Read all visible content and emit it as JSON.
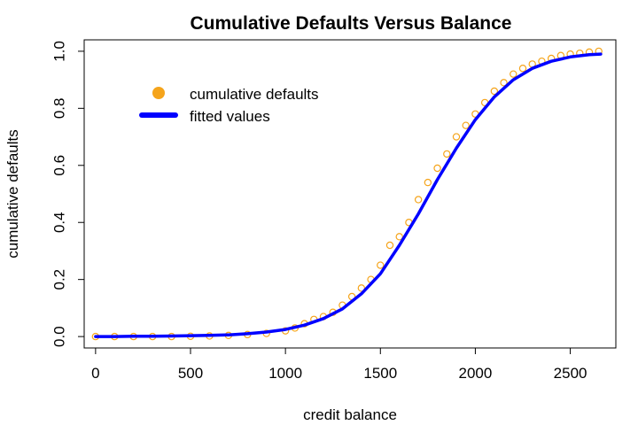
{
  "chart_data": {
    "type": "scatter",
    "title": "Cumulative Defaults Versus Balance",
    "xlabel": "credit balance",
    "ylabel": "cumulative defaults",
    "xlim": [
      -60,
      2740
    ],
    "ylim": [
      -0.04,
      1.04
    ],
    "x_ticks": [
      0,
      500,
      1000,
      1500,
      2000,
      2500
    ],
    "y_ticks": [
      0.0,
      0.2,
      0.4,
      0.6,
      0.8,
      1.0
    ],
    "x_tick_labels": [
      "0",
      "500",
      "1000",
      "1500",
      "2000",
      "2500"
    ],
    "y_tick_labels": [
      "0.0",
      "0.2",
      "0.4",
      "0.6",
      "0.8",
      "1.0"
    ],
    "grid": false,
    "legend_position": "top-left",
    "colors": {
      "points": "#f5a41b",
      "fit": "#0000ff"
    },
    "series": [
      {
        "name": "cumulative defaults",
        "kind": "points",
        "x": [
          0,
          100,
          200,
          300,
          400,
          500,
          600,
          700,
          800,
          900,
          1000,
          1050,
          1100,
          1150,
          1200,
          1250,
          1300,
          1350,
          1400,
          1450,
          1500,
          1550,
          1600,
          1650,
          1700,
          1750,
          1800,
          1850,
          1900,
          1950,
          2000,
          2050,
          2100,
          2150,
          2200,
          2250,
          2300,
          2350,
          2400,
          2450,
          2500,
          2550,
          2600,
          2650
        ],
        "y": [
          0.0,
          0.0,
          0.0,
          0.0,
          0.0,
          0.001,
          0.002,
          0.004,
          0.007,
          0.011,
          0.02,
          0.03,
          0.045,
          0.06,
          0.07,
          0.085,
          0.11,
          0.14,
          0.17,
          0.2,
          0.25,
          0.32,
          0.35,
          0.4,
          0.48,
          0.54,
          0.59,
          0.64,
          0.7,
          0.74,
          0.78,
          0.82,
          0.86,
          0.89,
          0.92,
          0.94,
          0.955,
          0.965,
          0.975,
          0.985,
          0.99,
          0.993,
          0.997,
          1.0
        ]
      },
      {
        "name": "fitted values",
        "kind": "line",
        "x": [
          0,
          100,
          200,
          300,
          400,
          500,
          600,
          700,
          800,
          900,
          1000,
          1100,
          1200,
          1300,
          1400,
          1500,
          1600,
          1700,
          1800,
          1900,
          2000,
          2100,
          2200,
          2300,
          2400,
          2500,
          2600,
          2660
        ],
        "y": [
          0.0,
          0.0,
          0.001,
          0.001,
          0.002,
          0.003,
          0.004,
          0.006,
          0.01,
          0.016,
          0.025,
          0.04,
          0.063,
          0.097,
          0.15,
          0.22,
          0.32,
          0.43,
          0.55,
          0.66,
          0.76,
          0.84,
          0.9,
          0.94,
          0.965,
          0.98,
          0.988,
          0.99
        ]
      }
    ]
  }
}
